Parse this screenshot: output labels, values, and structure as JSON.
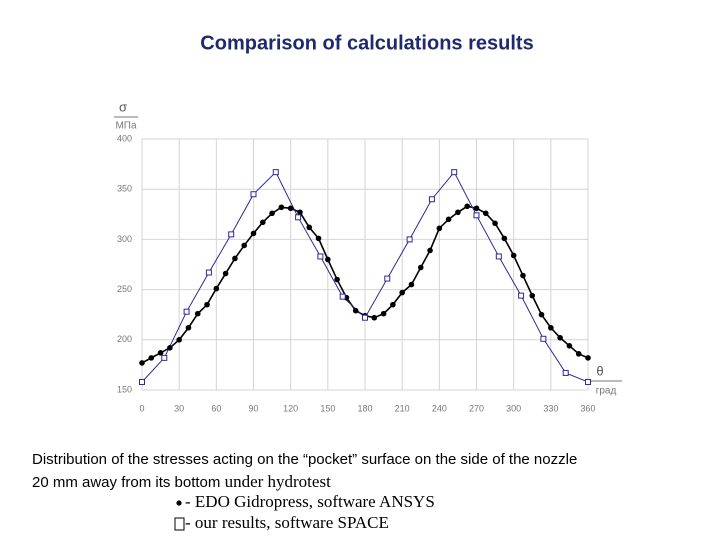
{
  "chart_data": {
    "type": "line",
    "title": "Comparison of calculations results",
    "y_symbol": "σ",
    "y_unit": "МПа",
    "x_symbol": "θ",
    "x_unit": "град",
    "xlim": [
      0,
      360
    ],
    "xticks": [
      0,
      30,
      60,
      90,
      120,
      150,
      180,
      210,
      240,
      270,
      300,
      330,
      360
    ],
    "ylim": [
      150,
      400
    ],
    "yticks": [
      150,
      200,
      250,
      300,
      350,
      400
    ],
    "grid": true,
    "series": [
      {
        "name": "- EDO Gidropress, software ANSYS",
        "color": "#000000",
        "marker": "circle",
        "x": [
          0,
          7.5,
          15,
          22.5,
          30,
          37.5,
          45,
          52.5,
          60,
          67.5,
          75,
          82.5,
          90,
          97.5,
          105,
          112.5,
          120,
          127.5,
          135,
          142.5,
          150,
          157.5,
          165,
          172.5,
          180,
          187.5,
          195,
          202.5,
          210,
          217.5,
          225,
          232.5,
          240,
          247.5,
          255,
          262.5,
          270,
          277.5,
          285,
          292.5,
          300,
          307.5,
          315,
          322.5,
          330,
          337.5,
          345,
          352.5,
          360
        ],
        "values": [
          177,
          182,
          187,
          192,
          200,
          212,
          226,
          235,
          251,
          266,
          281,
          294,
          306,
          317,
          326,
          332,
          331,
          327,
          312,
          301,
          280,
          260,
          242,
          229,
          224,
          222,
          226,
          235,
          247,
          255,
          272,
          289,
          311,
          320,
          327,
          333,
          331,
          326,
          316,
          301,
          284,
          264,
          244,
          225,
          212,
          202,
          194,
          186,
          182
        ]
      },
      {
        "name": "- our results, software SPACE",
        "color": "#2a2a9a",
        "marker": "square",
        "x": [
          0,
          18,
          36,
          54,
          72,
          90,
          108,
          126,
          144,
          162,
          180,
          198,
          216,
          234,
          252,
          270,
          288,
          306,
          324,
          342,
          360
        ],
        "values": [
          158,
          182,
          228,
          267,
          305,
          345,
          367,
          322,
          283,
          243,
          222,
          261,
          300,
          340,
          367,
          324,
          283,
          244,
          201,
          167,
          158
        ]
      }
    ],
    "caption": [
      "Distribution of the stresses acting on the “pocket” surface on the side of the nozzle",
      "20 mm away from its bottom",
      "under hydrotest"
    ]
  }
}
